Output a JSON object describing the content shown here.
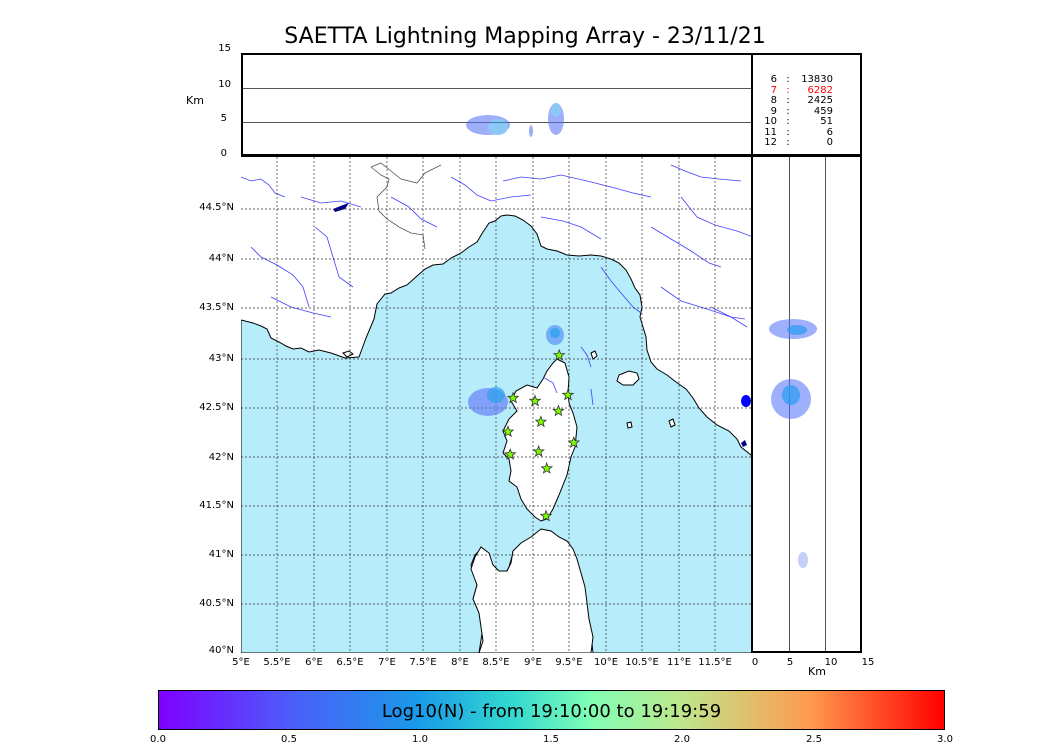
{
  "title": "SAETTA Lightning Mapping Array - 23/11/21",
  "alt_panel": {
    "unit": "Km",
    "y_ticks": [
      "0",
      "5",
      "10",
      "15"
    ]
  },
  "map": {
    "lat_labels": [
      "44.5°N",
      "44°N",
      "43.5°N",
      "43°N",
      "42.5°N",
      "42°N",
      "41.5°N",
      "41°N",
      "40.5°N",
      "40°N"
    ],
    "lon_labels": [
      "5°E",
      "5.5°E",
      "6°E",
      "6.5°E",
      "7°E",
      "7.5°E",
      "8°E",
      "8.5°E",
      "9°E",
      "9.5°E",
      "10°E",
      "10.5°E",
      "11°E",
      "11.5°E"
    ],
    "sea_color": "#b7ecfb",
    "land_color": "#ffffff",
    "river_color": "#4040ff",
    "station_color": "#7cfc00"
  },
  "side_panel": {
    "x_ticks": [
      "0",
      "5",
      "10",
      "15"
    ],
    "unit": "Km"
  },
  "counts": [
    {
      "alt": "6",
      "count": "13830",
      "color": "#000000"
    },
    {
      "alt": "7",
      "count": "6282",
      "color": "#ff0000"
    },
    {
      "alt": "8",
      "count": "2425",
      "color": "#000000"
    },
    {
      "alt": "9",
      "count": "459",
      "color": "#000000"
    },
    {
      "alt": "10",
      "count": "51",
      "color": "#000000"
    },
    {
      "alt": "11",
      "count": "6",
      "color": "#000000"
    },
    {
      "alt": "12",
      "count": "0",
      "color": "#000000"
    }
  ],
  "colorbar": {
    "label": "Log10(N) - from 19:10:00 to 19:19:59",
    "ticks": [
      "0.0",
      "0.5",
      "1.0",
      "1.5",
      "2.0",
      "2.5",
      "3.0"
    ],
    "colormap": "rainbow"
  },
  "stations": [
    {
      "lon": 9.35,
      "lat": 43.0
    },
    {
      "lon": 8.72,
      "lat": 42.57
    },
    {
      "lon": 9.02,
      "lat": 42.54
    },
    {
      "lon": 9.47,
      "lat": 42.6
    },
    {
      "lon": 9.34,
      "lat": 42.44
    },
    {
      "lon": 9.1,
      "lat": 42.33
    },
    {
      "lon": 8.65,
      "lat": 42.23
    },
    {
      "lon": 9.55,
      "lat": 42.12
    },
    {
      "lon": 9.07,
      "lat": 42.03
    },
    {
      "lon": 8.68,
      "lat": 42.0
    },
    {
      "lon": 9.18,
      "lat": 41.86
    },
    {
      "lon": 9.17,
      "lat": 41.38
    }
  ]
}
